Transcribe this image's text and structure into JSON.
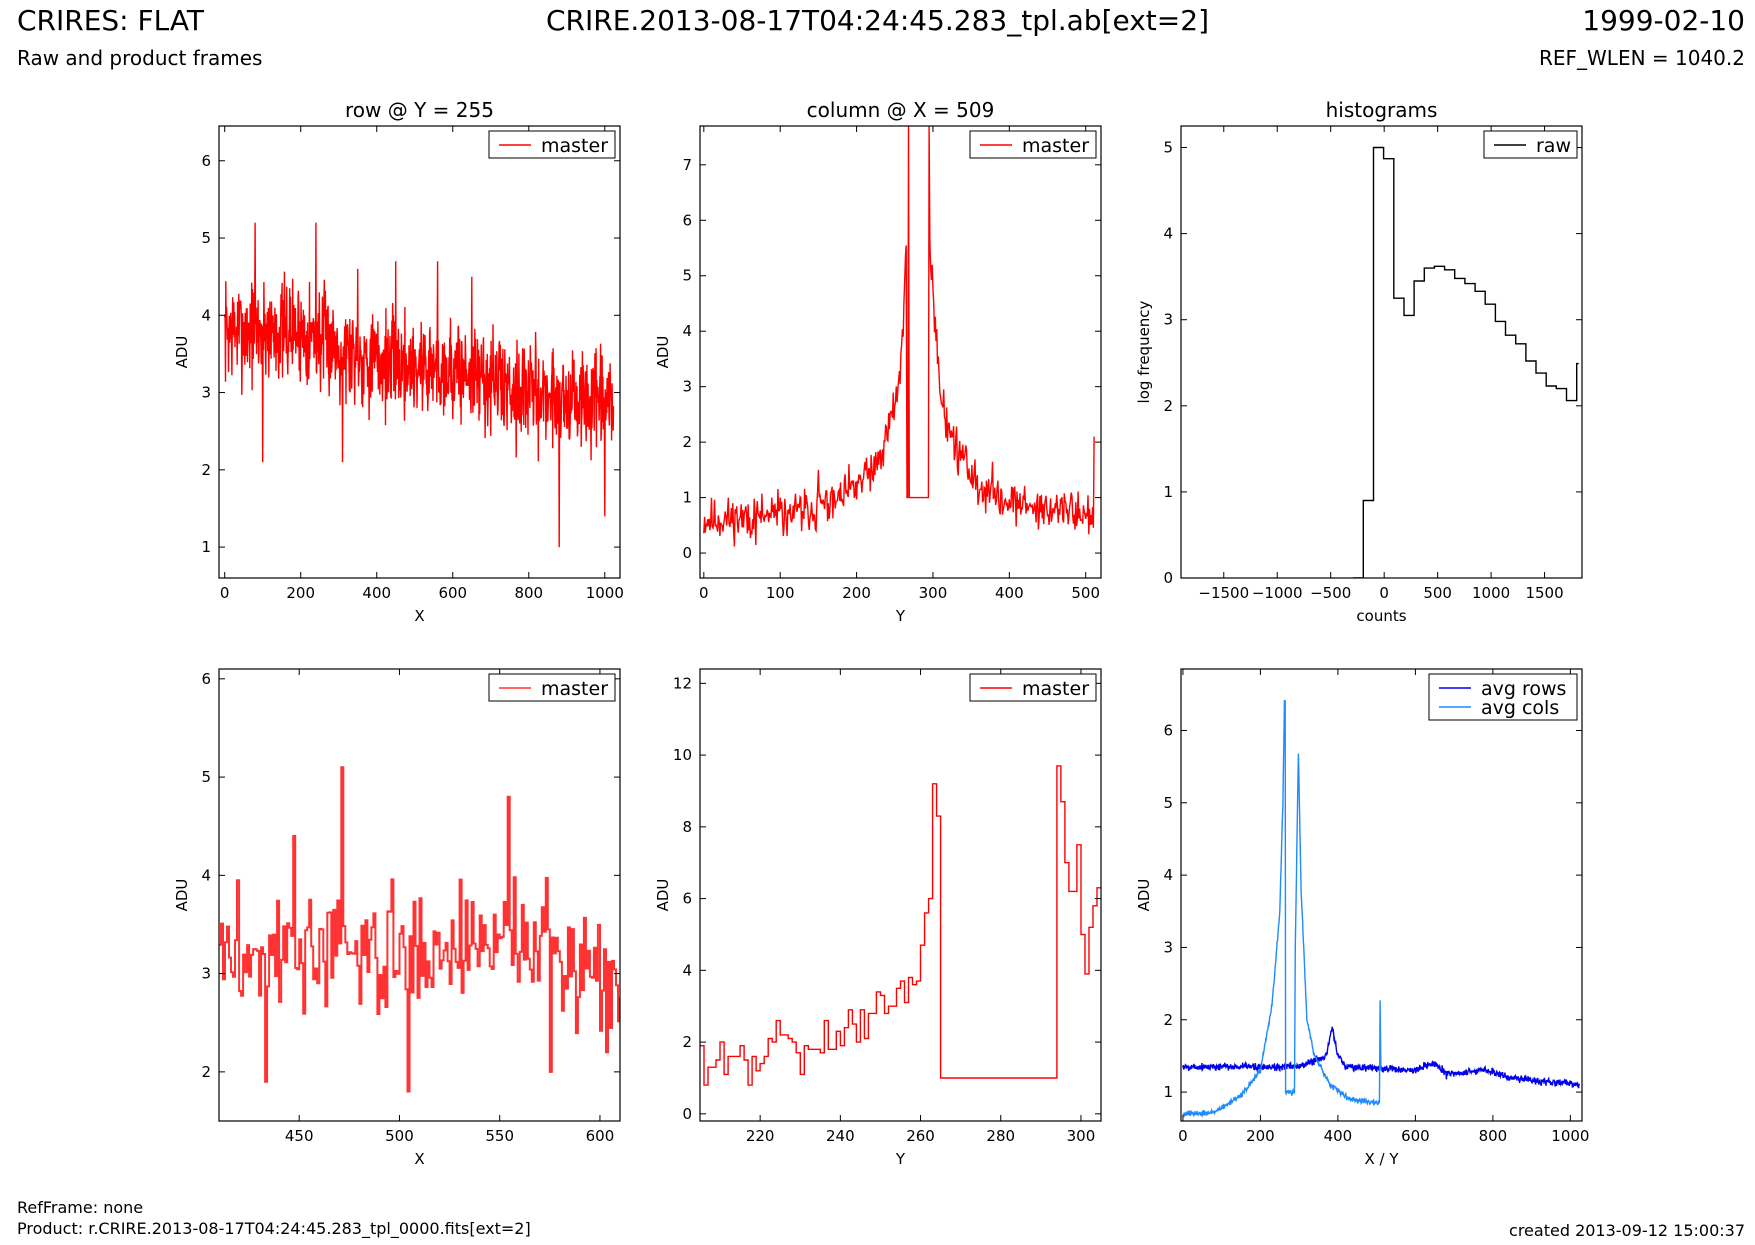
{
  "header": {
    "title": "CRIRES: FLAT",
    "subtitle": "Raw and product frames",
    "center_title": "CRIRE.2013-08-17T04:24:45.283_tpl.ab[ext=2]",
    "date": "1999-02-10",
    "ref_wlen": "REF_WLEN = 1040.2"
  },
  "footer": {
    "ref_frame": "RefFrame: none",
    "product": "Product: r.CRIRE.2013-08-17T04:24:45.283_tpl_0000.fits[ext=2]",
    "created": "created 2013-09-12 15:00:37"
  },
  "colors": {
    "master": "#ff0000",
    "master_zoom": "#ff3333",
    "raw": "#000000",
    "avg_rows": "#0000ee",
    "avg_cols": "#1e8cff"
  },
  "chart_data": [
    {
      "id": "row",
      "type": "line",
      "title": "row @ Y = 255",
      "xlabel": "X",
      "ylabel": "ADU",
      "xlim": [
        -15,
        1040
      ],
      "ylim": [
        0.6,
        6.45
      ],
      "xticks": [
        0,
        200,
        400,
        600,
        800,
        1000
      ],
      "yticks": [
        1,
        2,
        3,
        4,
        5,
        6
      ],
      "legend": {
        "position": "top-right"
      },
      "series": [
        {
          "name": "master",
          "color": "#ff0000",
          "mode": "noise",
          "x_start": 0,
          "x_end": 1023,
          "n": 1024,
          "baseline": [
            [
              0,
              3.8
            ],
            [
              200,
              3.8
            ],
            [
              400,
              3.4
            ],
            [
              600,
              3.3
            ],
            [
              800,
              3.0
            ],
            [
              1023,
              2.8
            ]
          ],
          "noise": 0.5,
          "seed": 7,
          "spikes": [
            [
              80,
              5.2
            ],
            [
              240,
              5.2
            ],
            [
              880,
              1.0
            ],
            [
              1000,
              1.4
            ],
            [
              100,
              2.1
            ],
            [
              350,
              4.6
            ],
            [
              450,
              4.7
            ],
            [
              560,
              4.7
            ],
            [
              650,
              4.5
            ],
            [
              310,
              2.1
            ]
          ]
        }
      ]
    },
    {
      "id": "column",
      "type": "line",
      "title": "column @ X = 509",
      "xlabel": "Y",
      "ylabel": "ADU",
      "xlim": [
        -5,
        520
      ],
      "ylim": [
        -0.45,
        7.7
      ],
      "xticks": [
        0,
        100,
        200,
        300,
        400,
        500
      ],
      "yticks": [
        0,
        1,
        2,
        3,
        4,
        5,
        6,
        7
      ],
      "legend": {
        "position": "top-right"
      },
      "series": [
        {
          "name": "master",
          "color": "#ff0000",
          "mode": "noise",
          "x_start": 0,
          "x_end": 511,
          "n": 512,
          "baseline": [
            [
              0,
              0.6
            ],
            [
              100,
              0.65
            ],
            [
              180,
              0.95
            ],
            [
              230,
              1.6
            ],
            [
              255,
              3.0
            ],
            [
              262,
              4.3
            ],
            [
              265,
              5.6
            ],
            [
              266,
              1.0
            ],
            [
              294,
              1.0
            ],
            [
              295,
              6.2
            ],
            [
              300,
              4.6
            ],
            [
              310,
              2.8
            ],
            [
              330,
              1.9
            ],
            [
              360,
              1.2
            ],
            [
              420,
              0.85
            ],
            [
              511,
              0.7
            ]
          ],
          "noise": 0.3,
          "seed": 11,
          "clip_min": 0.1,
          "plateau": [
            266,
            294,
            1.0
          ],
          "spikes": [
            [
              268,
              7.7
            ],
            [
              295,
              7.7
            ],
            [
              511,
              2.1
            ],
            [
              100,
              1.0
            ],
            [
              150,
              1.5
            ]
          ]
        }
      ]
    },
    {
      "id": "histograms",
      "type": "line",
      "title": "histograms",
      "xlabel": "counts",
      "ylabel": "log frequency",
      "xlim": [
        -1900,
        1850
      ],
      "ylim": [
        0,
        5.25
      ],
      "xticks": [
        -1500,
        -1000,
        -500,
        0,
        500,
        1000,
        1500
      ],
      "xticklabels": [
        "−1500",
        "−1000",
        "−500",
        "0",
        "500",
        "1000",
        "1500"
      ],
      "yticks": [
        0,
        1,
        2,
        3,
        4,
        5
      ],
      "legend": {
        "position": "top-right"
      },
      "series": [
        {
          "name": "raw",
          "color": "#000000",
          "mode": "step",
          "x": [
            -290,
            -195,
            -100,
            -5,
            90,
            185,
            280,
            375,
            470,
            565,
            660,
            755,
            850,
            945,
            1040,
            1135,
            1230,
            1325,
            1420,
            1515,
            1610,
            1705,
            1800
          ],
          "y": [
            0,
            0.9,
            5.0,
            4.87,
            3.25,
            3.05,
            3.45,
            3.6,
            3.62,
            3.58,
            3.48,
            3.42,
            3.33,
            3.18,
            2.98,
            2.82,
            2.72,
            2.52,
            2.38,
            2.23,
            2.2,
            2.06,
            2.49
          ]
        }
      ]
    },
    {
      "id": "row_zoom",
      "type": "line",
      "title": "",
      "xlabel": "X",
      "ylabel": "ADU",
      "xlim": [
        410,
        610
      ],
      "ylim": [
        1.5,
        6.1
      ],
      "xticks": [
        450,
        500,
        550,
        600
      ],
      "yticks": [
        2,
        3,
        4,
        5,
        6
      ],
      "legend": {
        "position": "top-right"
      },
      "series": [
        {
          "name": "master",
          "color": "#ff3333",
          "mode": "noise_step",
          "x_start": 410,
          "x_end": 610,
          "n": 201,
          "baseline": [
            [
              410,
              3.2
            ],
            [
              500,
              3.2
            ],
            [
              560,
              3.4
            ],
            [
              610,
              2.9
            ]
          ],
          "noise": 0.45,
          "seed": 3,
          "spikes": [
            [
              471,
              5.1
            ],
            [
              504,
              1.8
            ],
            [
              554,
              4.8
            ],
            [
              433,
              1.9
            ],
            [
              575,
              2.0
            ],
            [
              447,
              4.4
            ],
            [
              603,
              2.2
            ]
          ]
        }
      ]
    },
    {
      "id": "column_zoom",
      "type": "line",
      "title": "",
      "xlabel": "Y",
      "ylabel": "ADU",
      "xlim": [
        205,
        305
      ],
      "ylim": [
        -0.2,
        12.4
      ],
      "xticks": [
        220,
        240,
        260,
        280,
        300
      ],
      "yticks": [
        0,
        2,
        4,
        6,
        8,
        10,
        12
      ],
      "legend": {
        "position": "top-right"
      },
      "series": [
        {
          "name": "master",
          "color": "#ff0000",
          "mode": "step",
          "x": [
            205,
            206,
            207,
            208,
            209,
            210,
            211,
            212,
            213,
            214,
            215,
            216,
            217,
            218,
            219,
            220,
            221,
            222,
            223,
            224,
            225,
            226,
            227,
            228,
            229,
            230,
            231,
            232,
            233,
            234,
            235,
            236,
            237,
            238,
            239,
            240,
            241,
            242,
            243,
            244,
            245,
            246,
            247,
            248,
            249,
            250,
            251,
            252,
            253,
            254,
            255,
            256,
            257,
            258,
            259,
            260,
            261,
            262,
            263,
            264,
            265,
            294,
            295,
            296,
            297,
            298,
            299,
            300,
            301,
            302,
            303,
            304,
            305
          ],
          "y": [
            1.9,
            0.8,
            1.3,
            1.3,
            1.5,
            2.0,
            1.1,
            1.6,
            1.6,
            1.6,
            1.9,
            1.5,
            0.8,
            1.6,
            1.2,
            1.4,
            1.6,
            2.1,
            2.0,
            2.6,
            2.2,
            2.2,
            2.1,
            2.0,
            1.7,
            1.1,
            1.9,
            1.8,
            1.8,
            1.8,
            1.7,
            2.6,
            1.8,
            1.8,
            2.3,
            1.9,
            2.4,
            2.9,
            2.5,
            2.0,
            2.9,
            2.1,
            2.8,
            2.8,
            3.4,
            3.3,
            2.8,
            3.0,
            3.0,
            3.5,
            3.7,
            3.1,
            3.8,
            3.6,
            3.7,
            4.7,
            5.6,
            6.0,
            9.2,
            8.3,
            1.0,
            9.7,
            8.7,
            7.0,
            6.2,
            6.2,
            7.5,
            5.0,
            3.9,
            5.2,
            5.8,
            6.3,
            6.3
          ]
        }
      ]
    },
    {
      "id": "averages",
      "type": "line",
      "title": "",
      "xlabel": "X / Y",
      "ylabel": "ADU",
      "xlim": [
        -5,
        1030
      ],
      "ylim": [
        0.6,
        6.85
      ],
      "xticks": [
        0,
        200,
        400,
        600,
        800,
        1000
      ],
      "yticks": [
        1,
        2,
        3,
        4,
        5,
        6
      ],
      "legend": {
        "position": "top-right"
      },
      "series": [
        {
          "name": "avg rows",
          "color": "#0000ee",
          "mode": "noise",
          "x_start": 0,
          "x_end": 1023,
          "n": 1024,
          "baseline": [
            [
              0,
              1.35
            ],
            [
              300,
              1.35
            ],
            [
              370,
              1.5
            ],
            [
              385,
              1.9
            ],
            [
              400,
              1.5
            ],
            [
              420,
              1.35
            ],
            [
              600,
              1.3
            ],
            [
              650,
              1.4
            ],
            [
              680,
              1.25
            ],
            [
              780,
              1.3
            ],
            [
              850,
              1.2
            ],
            [
              1023,
              1.1
            ]
          ],
          "noise": 0.04,
          "seed": 5
        },
        {
          "name": "avg cols",
          "color": "#1e8cff",
          "mode": "noise",
          "x_start": 0,
          "x_end": 511,
          "n": 512,
          "baseline": [
            [
              0,
              0.7
            ],
            [
              80,
              0.72
            ],
            [
              150,
              0.95
            ],
            [
              200,
              1.3
            ],
            [
              230,
              2.2
            ],
            [
              250,
              3.5
            ],
            [
              258,
              5.0
            ],
            [
              262,
              6.4
            ],
            [
              264,
              6.4
            ],
            [
              265,
              1.0
            ],
            [
              288,
              1.0
            ],
            [
              290,
              3.0
            ],
            [
              298,
              5.7
            ],
            [
              305,
              3.8
            ],
            [
              320,
              2.0
            ],
            [
              340,
              1.5
            ],
            [
              380,
              1.1
            ],
            [
              430,
              0.9
            ],
            [
              500,
              0.85
            ],
            [
              507,
              0.85
            ],
            [
              509,
              2.3
            ],
            [
              511,
              1.3
            ]
          ],
          "noise": 0.03,
          "seed": 9
        }
      ]
    }
  ]
}
